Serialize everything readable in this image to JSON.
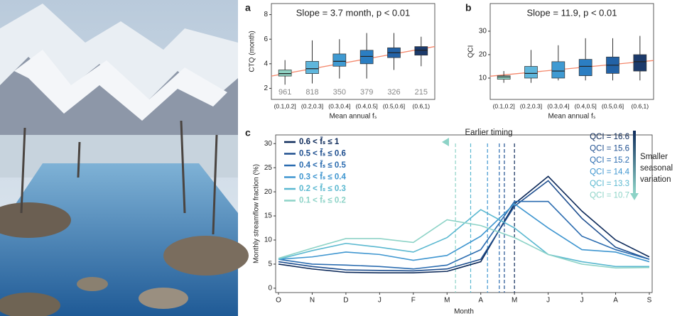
{
  "chart_data": [
    {
      "type": "box",
      "panel_label": "a",
      "annotation": "Slope = 3.7 month, p < 0.01",
      "categories": [
        "(0.1,0.2]",
        "(0.2,0.3]",
        "(0.3,0.4]",
        "(0.4,0.5]",
        "(0.5,0.6]",
        "(0.6,1)"
      ],
      "min": [
        2.3,
        2.4,
        2.8,
        2.8,
        3.5,
        3.8
      ],
      "q1": [
        3.0,
        3.2,
        3.8,
        4.0,
        4.5,
        4.7
      ],
      "median": [
        3.2,
        3.6,
        4.2,
        4.6,
        4.9,
        5.1
      ],
      "q3": [
        3.5,
        4.2,
        4.8,
        5.1,
        5.3,
        5.4
      ],
      "max": [
        4.3,
        5.9,
        6.0,
        6.5,
        6.5,
        6.2
      ],
      "colors": [
        "#8fd1c2",
        "#5fb6dc",
        "#3f9ad2",
        "#2b7ec2",
        "#2362a6",
        "#1b3a6b"
      ],
      "sample_sizes": [
        "961",
        "818",
        "350",
        "379",
        "326",
        "215"
      ],
      "trend_line": {
        "start": 3.0,
        "end": 5.4,
        "color": "#f4876b"
      },
      "ylabel": "CTQ (month)",
      "xlabel": "Mean annual fₛ",
      "ylim": [
        1.1,
        8.9
      ],
      "yticks": [
        2,
        4,
        6,
        8
      ]
    },
    {
      "type": "box",
      "panel_label": "b",
      "annotation": "Slope = 11.9, p < 0.01",
      "categories": [
        "(0.1,0.2]",
        "(0.2,0.3]",
        "(0.3,0.4]",
        "(0.4,0.5]",
        "(0.5,0.6]",
        "(0.6,1)"
      ],
      "min": [
        8,
        8,
        9,
        9,
        9,
        9
      ],
      "q1": [
        9.5,
        10,
        10,
        11,
        12,
        13
      ],
      "median": [
        10.5,
        12,
        13,
        15,
        15.5,
        17
      ],
      "q3": [
        11,
        15,
        17,
        18,
        19,
        20
      ],
      "max": [
        13,
        22,
        24,
        27,
        27,
        28
      ],
      "colors": [
        "#8fd1c2",
        "#5fb6dc",
        "#3f9ad2",
        "#2b7ec2",
        "#2362a6",
        "#1b3a6b"
      ],
      "trend_line": {
        "start": 10.8,
        "end": 17.5,
        "color": "#f4876b"
      },
      "ylabel": "QCI",
      "xlabel": "Mean annual fₛ",
      "ylim": [
        0.9,
        41.8
      ],
      "yticks": [
        10,
        20,
        30
      ]
    },
    {
      "type": "line",
      "panel_label": "c",
      "categories": [
        "O",
        "N",
        "D",
        "J",
        "F",
        "M",
        "A",
        "M",
        "J",
        "J",
        "A",
        "S"
      ],
      "series": [
        {
          "name": "0.6 < f̄ₛ ≤ 1",
          "color": "#0d2a5a",
          "values": [
            5.0,
            4.0,
            3.3,
            3.2,
            3.2,
            3.5,
            5.5,
            17.5,
            23.2,
            16.0,
            10.0,
            6.5
          ],
          "timing": 7.0,
          "qci_label": "QCI = 16.6"
        },
        {
          "name": "0.5 < f̄ₛ ≤ 0.6",
          "color": "#1f4f8f",
          "values": [
            5.5,
            4.5,
            3.8,
            3.7,
            3.6,
            4.0,
            6.0,
            17.0,
            22.3,
            14.5,
            8.5,
            6.0
          ],
          "timing": 6.7,
          "qci_label": "QCI = 15.6"
        },
        {
          "name": "0.4 < f̄ₛ ≤ 0.5",
          "color": "#2b6cb0",
          "values": [
            6.0,
            5.0,
            4.8,
            4.5,
            4.0,
            4.8,
            8.0,
            18.0,
            18.0,
            10.8,
            8.0,
            6.0
          ],
          "timing": 6.55,
          "qci_label": "QCI = 15.2"
        },
        {
          "name": "0.3 < f̄ₛ ≤ 0.4",
          "color": "#3f96d0",
          "values": [
            6.0,
            6.5,
            7.5,
            7.0,
            5.8,
            6.8,
            10.8,
            17.5,
            12.5,
            8.0,
            7.5,
            5.5
          ],
          "timing": 6.2,
          "qci_label": "QCI = 14.4"
        },
        {
          "name": "0.2 < f̄ₛ ≤ 0.3",
          "color": "#5ab8d0",
          "values": [
            6.0,
            7.8,
            9.3,
            8.5,
            7.5,
            10.5,
            16.3,
            12.5,
            7.0,
            5.5,
            4.5,
            4.5
          ],
          "timing": 5.7,
          "qci_label": "QCI = 13.3"
        },
        {
          "name": "0.1 < f̄ₛ ≤ 0.2",
          "color": "#8dd3c7",
          "values": [
            6.2,
            8.3,
            10.3,
            10.3,
            9.5,
            14.2,
            13.0,
            10.5,
            7.0,
            5.0,
            4.2,
            4.3
          ],
          "timing": 5.25,
          "qci_label": "QCI = 10.7"
        }
      ],
      "timing_note": "Earlier timing",
      "side_note": [
        "Smaller",
        "seasonal",
        "variation"
      ],
      "ylabel": "Monthly streamflow fraction (%)",
      "xlabel": "Month",
      "ylim": [
        -0.9,
        31.8
      ],
      "yticks": [
        0,
        5,
        10,
        15,
        20,
        25,
        30
      ]
    }
  ]
}
